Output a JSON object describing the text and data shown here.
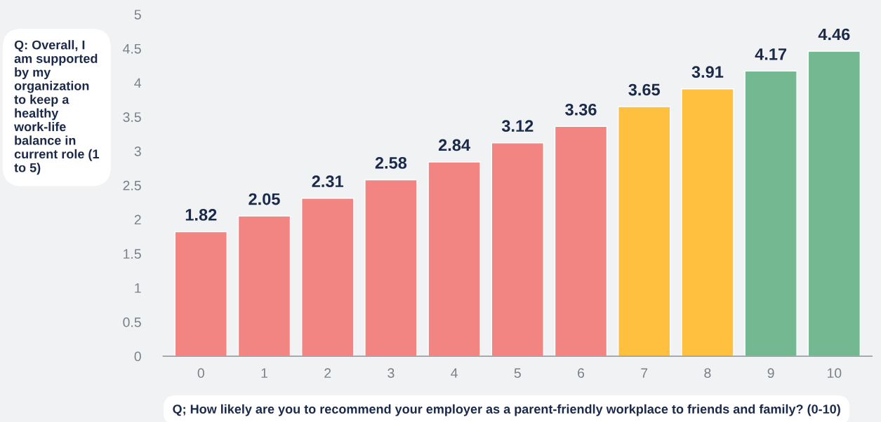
{
  "chart_data": {
    "type": "bar",
    "ylabel": "Q: Overall, I am supported by my organization to keep a healthy work-life balance in current role (1 to 5)",
    "xlabel": "Q; How likely are you to recommend your employer as a parent-friendly workplace to friends and family? (0-10)",
    "categories": [
      "0",
      "1",
      "2",
      "3",
      "4",
      "5",
      "6",
      "7",
      "8",
      "9",
      "10"
    ],
    "values": [
      1.82,
      2.05,
      2.31,
      2.58,
      2.84,
      3.12,
      3.36,
      3.65,
      3.91,
      4.17,
      4.46
    ],
    "colors": [
      "#f28482",
      "#f28482",
      "#f28482",
      "#f28482",
      "#f28482",
      "#f28482",
      "#f28482",
      "#ffbf3f",
      "#ffbf3f",
      "#73b891",
      "#73b891"
    ],
    "ylim": [
      0,
      5
    ],
    "yticks": [
      0,
      0.5,
      1,
      1.5,
      2,
      2.5,
      3,
      3.5,
      4,
      4.5,
      5
    ],
    "data_labels": true,
    "grid": false,
    "legend": false
  }
}
